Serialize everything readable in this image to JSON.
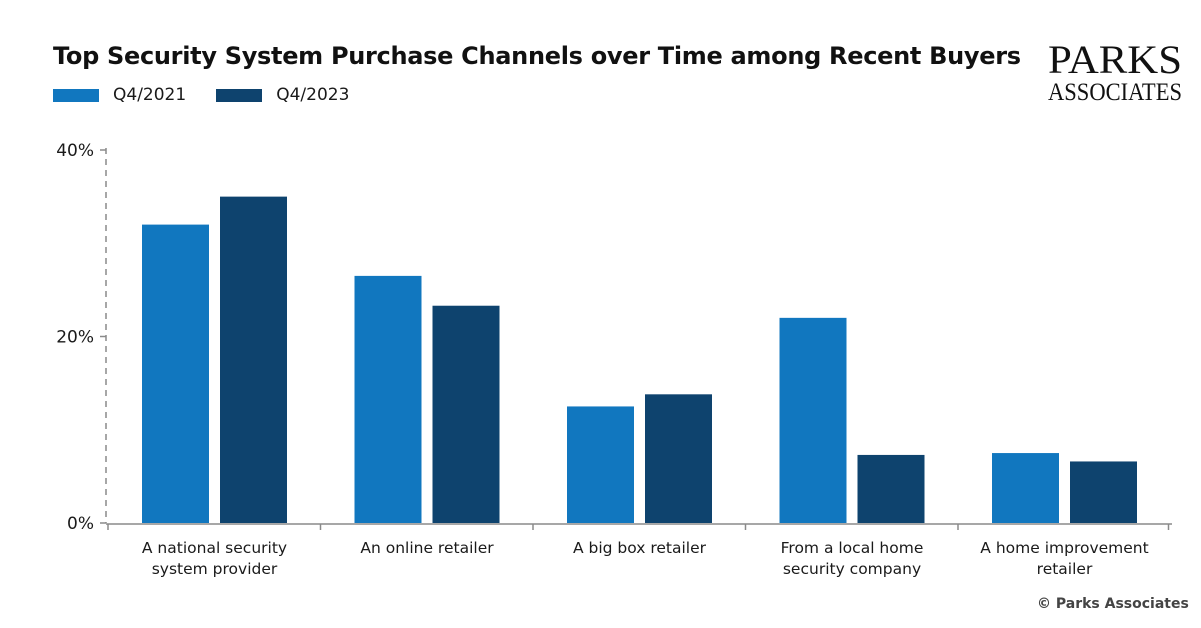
{
  "chart_data": {
    "type": "bar",
    "title": "Top Security System Purchase Channels over Time among Recent Buyers",
    "categories": [
      [
        "A national security",
        "system provider"
      ],
      [
        "An online retailer"
      ],
      [
        "A big box retailer"
      ],
      [
        "From a local home",
        "security company"
      ],
      [
        "A home improvement",
        "retailer"
      ]
    ],
    "series": [
      {
        "name": "Q4/2021",
        "color": "#1177BF",
        "values": [
          32,
          26.5,
          12.5,
          22,
          7.5
        ]
      },
      {
        "name": "Q4/2023",
        "color": "#0E436E",
        "values": [
          35,
          23.3,
          13.8,
          7.3,
          6.6
        ]
      }
    ],
    "yticks": [
      "0%",
      "20%",
      "40%"
    ],
    "ytick_values": [
      0,
      20,
      40
    ],
    "ylim": [
      0,
      40
    ],
    "xlabel": "",
    "ylabel": "",
    "legend": "top-left"
  },
  "logo": {
    "line1": "PARKS",
    "line2": "ASSOCIATES"
  },
  "copyright": "© Parks Associates"
}
